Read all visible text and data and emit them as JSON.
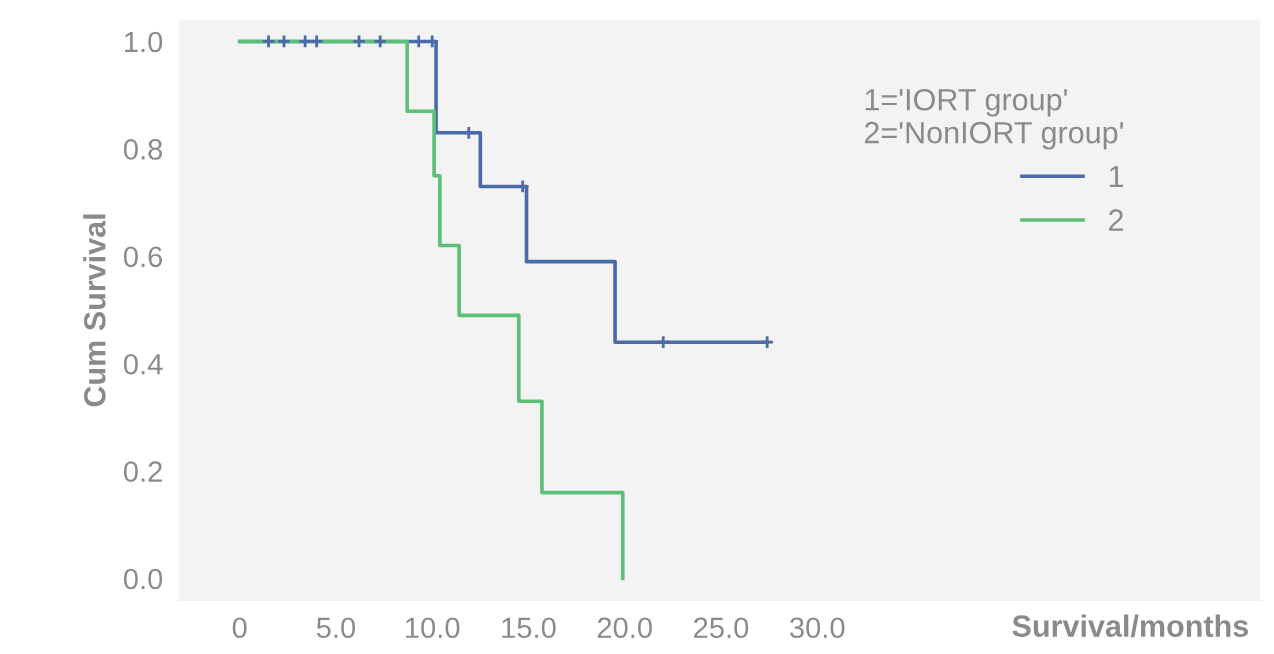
{
  "chart_data": {
    "type": "step",
    "xlabel": "Survival/months",
    "ylabel": "Cum Survival",
    "legend_title": "1='IORT group'\n2='NonIORT group'",
    "series": [
      {
        "name": "1",
        "color": "#4a6aa8",
        "x": [
          0,
          10.2,
          12.5,
          14.9,
          19.5,
          27.4
        ],
        "values": [
          1,
          0.83,
          0.73,
          0.59,
          0.44,
          0.44
        ]
      },
      {
        "name": "2",
        "color": "#5cbf77",
        "x": [
          0,
          8.7,
          10.1,
          10.4,
          11.4,
          14.5,
          15.7,
          19.9,
          19.9
        ],
        "values": [
          1,
          0.87,
          0.75,
          0.62,
          0.49,
          0.33,
          0.16,
          0,
          0
        ]
      },
      {
        "type": "scatter",
        "color": "#4a6aa8",
        "marker": "cross",
        "x": [
          1.5,
          2.3,
          3.4,
          4.0,
          6.2,
          7.3,
          9.3,
          10.0,
          11.9,
          14.7,
          22.0,
          27.4
        ],
        "values": [
          1,
          1,
          1,
          1,
          1,
          1,
          1,
          1,
          0.83,
          0.73,
          0.44,
          0.44
        ]
      }
    ],
    "xlim": [
      -3.1,
      53
    ],
    "ylim": [
      -0.04,
      1.04
    ],
    "xticks": [
      0,
      {
        "value": 5,
        "label": "5.0"
      },
      {
        "value": 10,
        "label": "10.0"
      },
      {
        "value": 15,
        "label": "15.0"
      },
      {
        "value": 20,
        "label": "20.0"
      },
      {
        "value": 25,
        "label": "25.0"
      },
      {
        "value": 30,
        "label": "30.0"
      }
    ],
    "yticks": [
      {
        "value": 0,
        "label": "0.0"
      },
      {
        "value": 0.2,
        "label": "0.2"
      },
      {
        "value": 0.4,
        "label": "0.4"
      },
      {
        "value": 0.6,
        "label": "0.6"
      },
      {
        "value": 0.8,
        "label": "0.8"
      },
      {
        "value": 1,
        "label": "1.0"
      }
    ],
    "legend": "top right"
  }
}
